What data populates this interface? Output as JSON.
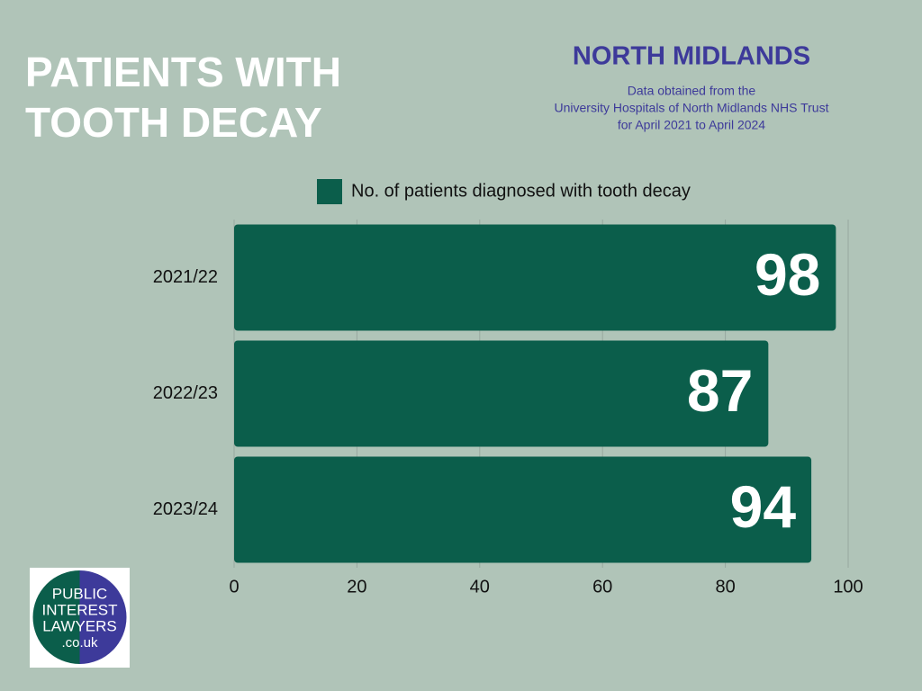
{
  "chart_data": {
    "type": "bar",
    "orientation": "horizontal",
    "title": "PATIENTS WITH TOOTH DECAY",
    "subtitle": "NORTH MIDLANDS",
    "notes": [
      "Data obtained from the",
      "University Hospitals of North Midlands NHS Trust",
      "for April 2021 to April 2024"
    ],
    "categories": [
      "2021/22",
      "2022/23",
      "2023/24"
    ],
    "series": [
      {
        "name": "No. of patients diagnosed with tooth decay",
        "color": "#0b5e4b",
        "values": [
          98,
          87,
          94
        ]
      }
    ],
    "xlim": [
      0,
      100
    ],
    "xticks": [
      0,
      20,
      40,
      60,
      80,
      100
    ],
    "grid": true
  },
  "logo": {
    "lines": [
      "PUBLIC",
      "INTEREST",
      "LAWYERS",
      ".co.uk"
    ]
  }
}
